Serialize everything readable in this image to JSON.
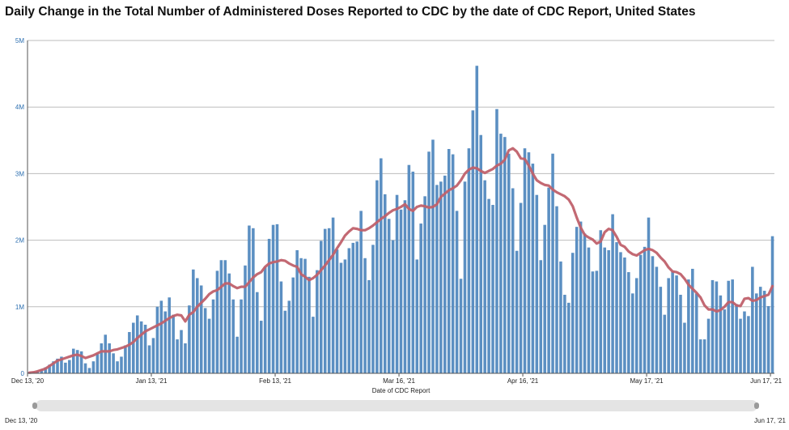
{
  "page": {
    "title": "Daily Change in the Total Number of Administered Doses Reported to CDC by the date of CDC Report, United States"
  },
  "range_slider": {
    "start_label": "Dec 13, '20",
    "end_label": "Jun 17, '21"
  },
  "chart_data": {
    "type": "bar",
    "title": "Daily Change in the Total Number of Administered Doses Reported to CDC by the date of CDC Report, United States",
    "xlabel": "Date of CDC Report",
    "ylabel": "",
    "ylim": [
      0,
      5000000
    ],
    "y_ticks": [
      0,
      1000000,
      2000000,
      3000000,
      4000000,
      5000000
    ],
    "y_tick_labels": [
      "0",
      "1M",
      "2M",
      "3M",
      "4M",
      "5M"
    ],
    "x_ticks": [
      {
        "index": 0,
        "label": "Dec 13, '20"
      },
      {
        "index": 31,
        "label": "Jan 13, '21"
      },
      {
        "index": 62,
        "label": "Feb 13, '21"
      },
      {
        "index": 93,
        "label": "Mar 16, '21"
      },
      {
        "index": 124,
        "label": "Apr 16, '21"
      },
      {
        "index": 155,
        "label": "May 17, '21"
      },
      {
        "index": 186,
        "label": "Jun 17, '21"
      }
    ],
    "grid": true,
    "bar_color": "#5b8fc2",
    "line_color": "#c0616b",
    "series": [
      {
        "type": "bar",
        "values": [
          20000,
          25000,
          40000,
          60000,
          90000,
          130000,
          180000,
          220000,
          250000,
          160000,
          200000,
          370000,
          350000,
          330000,
          150000,
          80000,
          180000,
          300000,
          450000,
          580000,
          450000,
          300000,
          180000,
          250000,
          420000,
          620000,
          760000,
          870000,
          780000,
          730000,
          420000,
          530000,
          1000000,
          1090000,
          930000,
          1140000,
          880000,
          510000,
          650000,
          450000,
          1020000,
          1560000,
          1430000,
          1320000,
          980000,
          820000,
          1110000,
          1540000,
          1700000,
          1700000,
          1500000,
          1110000,
          550000,
          1110000,
          1620000,
          2220000,
          2180000,
          1220000,
          790000,
          1600000,
          2020000,
          2230000,
          2240000,
          1380000,
          940000,
          1090000,
          1440000,
          1850000,
          1730000,
          1720000,
          1450000,
          850000,
          1550000,
          1990000,
          2170000,
          2180000,
          2340000,
          1860000,
          1660000,
          1710000,
          1880000,
          1960000,
          1980000,
          2440000,
          1730000,
          1400000,
          1930000,
          2900000,
          3230000,
          2690000,
          2320000,
          2000000,
          2680000,
          2460000,
          2600000,
          3130000,
          3030000,
          1710000,
          2250000,
          2660000,
          3330000,
          3510000,
          2830000,
          2880000,
          2970000,
          3370000,
          3290000,
          2440000,
          1420000,
          2880000,
          3380000,
          3950000,
          4620000,
          3580000,
          2900000,
          2620000,
          2530000,
          3970000,
          3600000,
          3550000,
          3300000,
          2780000,
          1840000,
          2560000,
          3380000,
          3320000,
          3150000,
          2680000,
          1700000,
          2230000,
          2790000,
          3300000,
          2510000,
          1680000,
          1180000,
          1060000,
          1810000,
          2200000,
          2280000,
          2100000,
          1890000,
          1530000,
          1540000,
          2150000,
          1890000,
          1850000,
          2390000,
          1970000,
          1820000,
          1740000,
          1520000,
          1200000,
          1430000,
          1780000,
          1900000,
          2340000,
          1760000,
          1600000,
          1300000,
          880000,
          1430000,
          1530000,
          1470000,
          1180000,
          760000,
          1410000,
          1570000,
          1200000,
          510000,
          510000,
          820000,
          1400000,
          1380000,
          1170000,
          960000,
          1390000,
          1410000,
          1040000,
          820000,
          930000,
          860000,
          1600000,
          1200000,
          1300000,
          1240000,
          1010000,
          2060000
        ]
      },
      {
        "type": "line",
        "values": [
          10000,
          15000,
          30000,
          50000,
          70000,
          110000,
          150000,
          190000,
          210000,
          230000,
          250000,
          270000,
          280000,
          260000,
          230000,
          250000,
          270000,
          300000,
          330000,
          330000,
          330000,
          350000,
          360000,
          380000,
          400000,
          430000,
          470000,
          530000,
          580000,
          630000,
          660000,
          690000,
          720000,
          750000,
          790000,
          830000,
          860000,
          880000,
          870000,
          780000,
          880000,
          920000,
          1000000,
          1060000,
          1120000,
          1190000,
          1230000,
          1250000,
          1300000,
          1350000,
          1350000,
          1310000,
          1280000,
          1300000,
          1300000,
          1370000,
          1440000,
          1490000,
          1520000,
          1600000,
          1650000,
          1670000,
          1680000,
          1700000,
          1690000,
          1650000,
          1620000,
          1600000,
          1490000,
          1450000,
          1400000,
          1430000,
          1480000,
          1550000,
          1620000,
          1700000,
          1780000,
          1880000,
          1970000,
          2070000,
          2130000,
          2180000,
          2170000,
          2150000,
          2150000,
          2180000,
          2220000,
          2270000,
          2320000,
          2360000,
          2410000,
          2450000,
          2470000,
          2500000,
          2540000,
          2470000,
          2440000,
          2500000,
          2520000,
          2510000,
          2490000,
          2500000,
          2540000,
          2650000,
          2700000,
          2750000,
          2780000,
          2820000,
          2900000,
          3000000,
          3060000,
          3090000,
          3080000,
          3040000,
          3010000,
          3040000,
          3070000,
          3120000,
          3150000,
          3210000,
          3350000,
          3380000,
          3330000,
          3230000,
          3220000,
          3120000,
          3000000,
          2900000,
          2860000,
          2830000,
          2820000,
          2760000,
          2720000,
          2690000,
          2660000,
          2610000,
          2510000,
          2340000,
          2190000,
          2080000,
          2040000,
          2010000,
          1950000,
          1980000,
          2120000,
          2170000,
          2150000,
          2050000,
          1930000,
          1900000,
          1830000,
          1790000,
          1770000,
          1810000,
          1850000,
          1870000,
          1850000,
          1810000,
          1740000,
          1680000,
          1590000,
          1530000,
          1520000,
          1490000,
          1420000,
          1330000,
          1270000,
          1210000,
          1140000,
          1020000,
          960000,
          960000,
          930000,
          950000,
          1000000,
          1070000,
          1070000,
          1020000,
          1010000,
          1120000,
          1130000,
          1090000,
          1100000,
          1140000,
          1160000,
          1180000,
          1310000
        ]
      }
    ]
  }
}
